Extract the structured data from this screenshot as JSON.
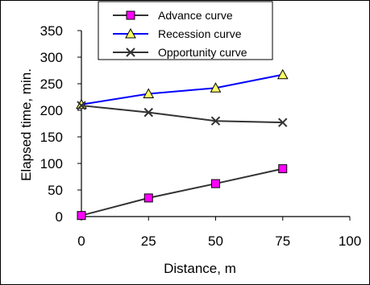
{
  "chart_data": {
    "type": "line",
    "xlabel": "Distance, m",
    "ylabel": "Elapsed time, min.",
    "xlim": [
      0,
      100
    ],
    "ylim": [
      0,
      350
    ],
    "xticks": [
      0,
      25,
      50,
      75,
      100
    ],
    "yticks": [
      0,
      50,
      100,
      150,
      200,
      250,
      300,
      350
    ],
    "grid": false,
    "legend_position": "top-center",
    "series": [
      {
        "name": "Advance curve",
        "x": [
          0,
          25,
          50,
          75
        ],
        "y": [
          2,
          35,
          62,
          90
        ],
        "line_color": "#333333",
        "marker": "square",
        "marker_fill": "#ff00ff"
      },
      {
        "name": "Recession curve",
        "x": [
          0,
          25,
          50,
          75
        ],
        "y": [
          211,
          231,
          242,
          267
        ],
        "line_color": "#0000ff",
        "marker": "triangle",
        "marker_fill": "#ffff66"
      },
      {
        "name": "Opportunity curve",
        "x": [
          0,
          25,
          50,
          75
        ],
        "y": [
          209,
          196,
          180,
          177
        ],
        "line_color": "#333333",
        "marker": "x",
        "marker_fill": "none"
      }
    ]
  }
}
